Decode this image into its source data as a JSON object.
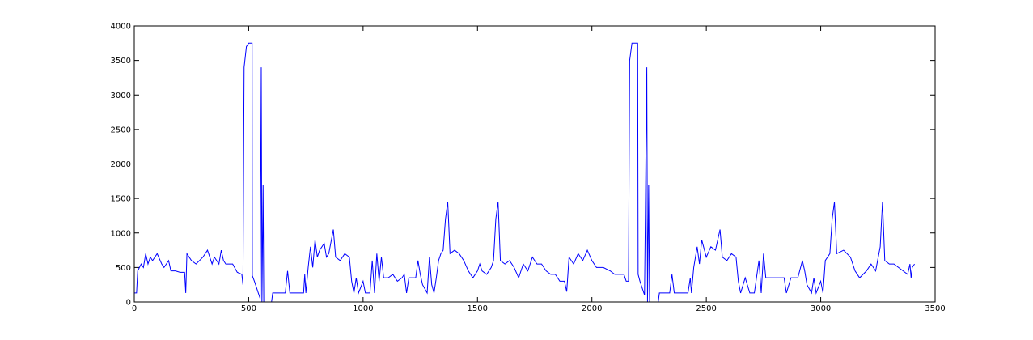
{
  "chart_data": {
    "type": "line",
    "color": "#0000ff",
    "xlim": [
      0,
      3500
    ],
    "xticks": [
      0,
      500,
      1000,
      1500,
      2000,
      2500,
      3000,
      3500
    ],
    "ylim": [
      0,
      4000
    ],
    "yticks": [
      0,
      500,
      1000,
      1500,
      2000,
      2500,
      3000,
      3500,
      4000
    ],
    "x": [
      0,
      10,
      15,
      30,
      40,
      50,
      60,
      70,
      80,
      100,
      120,
      130,
      150,
      160,
      180,
      200,
      220,
      225,
      230,
      250,
      270,
      300,
      320,
      340,
      350,
      370,
      380,
      390,
      400,
      430,
      450,
      470,
      475,
      480,
      490,
      500,
      515,
      516,
      525,
      540,
      550,
      555,
      558,
      563,
      566,
      600,
      605,
      660,
      670,
      680,
      740,
      745,
      750,
      760,
      770,
      780,
      790,
      800,
      810,
      830,
      840,
      850,
      870,
      880,
      900,
      920,
      940,
      950,
      960,
      970,
      980,
      1000,
      1010,
      1030,
      1040,
      1050,
      1060,
      1070,
      1080,
      1090,
      1110,
      1130,
      1150,
      1170,
      1180,
      1190,
      1200,
      1230,
      1240,
      1250,
      1260,
      1280,
      1290,
      1300,
      1310,
      1320,
      1330,
      1340,
      1350,
      1360,
      1370,
      1380,
      1400,
      1420,
      1440,
      1460,
      1480,
      1500,
      1510,
      1520,
      1540,
      1560,
      1570,
      1580,
      1590,
      1600,
      1620,
      1640,
      1660,
      1680,
      1700,
      1720,
      1740,
      1760,
      1780,
      1800,
      1820,
      1840,
      1860,
      1880,
      1890,
      1900,
      1920,
      1940,
      1960,
      1980,
      2000,
      2020,
      2050,
      2080,
      2100,
      2140,
      2150,
      2160,
      2165,
      2175,
      2200,
      2202,
      2210,
      2230,
      2240,
      2243,
      2248,
      2252,
      2290,
      2295,
      2340,
      2350,
      2360,
      2420,
      2430,
      2435,
      2445,
      2460,
      2470,
      2480,
      2500,
      2520,
      2540,
      2560,
      2570,
      2590,
      2610,
      2630,
      2640,
      2650,
      2670,
      2690,
      2710,
      2730,
      2740,
      2750,
      2760,
      2800,
      2840,
      2850,
      2870,
      2900,
      2920,
      2930,
      2940,
      2960,
      2970,
      2980,
      3000,
      3010,
      3020,
      3040,
      3050,
      3060,
      3070,
      3100,
      3130,
      3150,
      3170,
      3200,
      3220,
      3240,
      3260,
      3270,
      3280,
      3300,
      3320,
      3340,
      3360,
      3380,
      3390,
      3395,
      3400,
      3410
    ],
    "values": [
      130,
      130,
      450,
      550,
      500,
      700,
      550,
      650,
      600,
      700,
      550,
      500,
      600,
      450,
      450,
      430,
      430,
      130,
      700,
      600,
      550,
      650,
      750,
      550,
      650,
      550,
      750,
      600,
      550,
      550,
      430,
      400,
      250,
      3400,
      3700,
      3750,
      3750,
      380,
      300,
      150,
      50,
      3400,
      0,
      1700,
      0,
      0,
      130,
      130,
      450,
      130,
      130,
      400,
      130,
      500,
      800,
      500,
      900,
      650,
      750,
      850,
      650,
      700,
      1050,
      650,
      600,
      700,
      650,
      300,
      130,
      350,
      130,
      300,
      130,
      130,
      600,
      130,
      700,
      300,
      650,
      350,
      350,
      400,
      300,
      350,
      400,
      130,
      350,
      350,
      600,
      400,
      250,
      130,
      650,
      250,
      130,
      350,
      600,
      700,
      750,
      1200,
      1450,
      700,
      750,
      700,
      600,
      450,
      350,
      450,
      550,
      450,
      400,
      500,
      600,
      1200,
      1450,
      600,
      550,
      600,
      500,
      350,
      550,
      450,
      650,
      550,
      550,
      450,
      400,
      400,
      300,
      300,
      150,
      650,
      550,
      700,
      600,
      750,
      600,
      500,
      500,
      450,
      400,
      400,
      300,
      300,
      3500,
      3750,
      3750,
      400,
      300,
      100,
      3400,
      0,
      1700,
      0,
      0,
      130,
      130,
      400,
      130,
      130,
      350,
      130,
      500,
      800,
      550,
      900,
      650,
      800,
      750,
      1050,
      650,
      600,
      700,
      650,
      300,
      130,
      350,
      130,
      130,
      600,
      130,
      700,
      350,
      350,
      350,
      130,
      350,
      350,
      600,
      450,
      250,
      130,
      350,
      130,
      300,
      130,
      600,
      700,
      1200,
      1450,
      700,
      750,
      650,
      450,
      350,
      450,
      550,
      450,
      800,
      1450,
      600,
      550,
      550,
      500,
      450,
      400,
      550,
      350,
      500,
      550
    ]
  }
}
